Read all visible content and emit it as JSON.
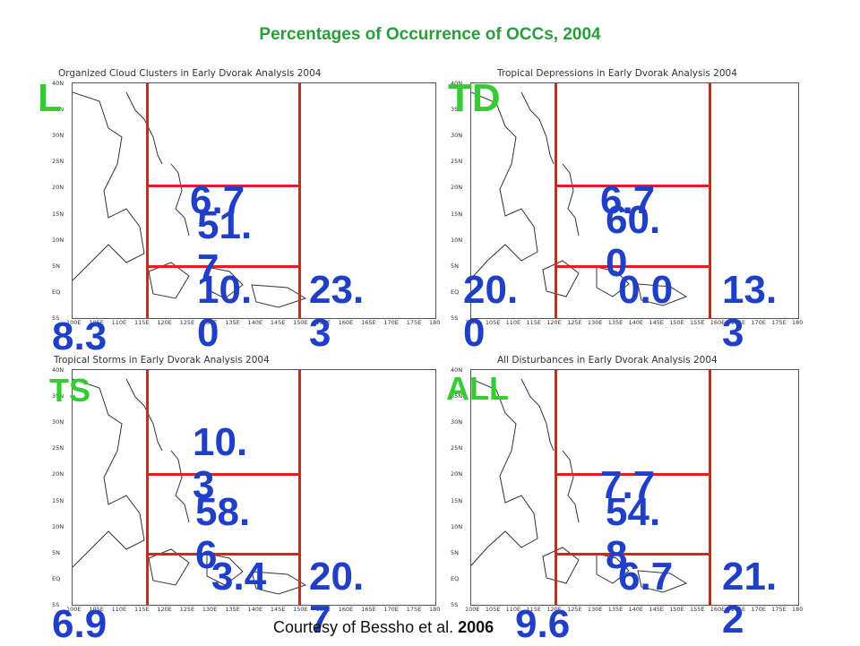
{
  "title": "Percentages of Occurrence of OCCs, 2004",
  "credit": {
    "text": "Courtesy of Bessho et al. ",
    "year": "2006"
  },
  "axis": {
    "lat_ticks": [
      "40N",
      "35N",
      "30N",
      "25N",
      "20N",
      "15N",
      "10N",
      "5N",
      "EQ",
      "5S"
    ],
    "lon_ticks": [
      "100E",
      "105E",
      "110E",
      "115E",
      "120E",
      "125E",
      "130E",
      "135E",
      "140E",
      "145E",
      "150E",
      "155E",
      "160E",
      "165E",
      "170E",
      "175E",
      "180"
    ]
  },
  "panels": [
    {
      "id": "L",
      "tag": "L",
      "heading": "Organized Cloud Clusters in Early Dvorak Analysis 2004",
      "values": {
        "north": "6.7",
        "central": "51.\n7",
        "south": "10.\n0",
        "east": "23.\n3",
        "west": "8.3"
      }
    },
    {
      "id": "TD",
      "tag": "TD",
      "heading": "Tropical Depressions in Early Dvorak Analysis 2004",
      "values": {
        "north": "6.7",
        "central": "60.\n0",
        "south": "0.0",
        "east": "13.\n3",
        "west": "20.\n0"
      }
    },
    {
      "id": "TS",
      "tag": "TS",
      "heading": "Tropical Storms in Early Dvorak Analysis 2004",
      "values": {
        "north": "10.\n3",
        "central": "58.\n6",
        "south": "3.4",
        "east": "20.\n7",
        "west": "6.9"
      }
    },
    {
      "id": "ALL",
      "tag": "ALL",
      "heading": "All Disturbances in Early Dvorak Analysis 2004",
      "values": {
        "north": "7.7",
        "central": "54.\n8",
        "south": "6.7",
        "east": "21.\n2",
        "west": "9.6"
      }
    }
  ]
}
